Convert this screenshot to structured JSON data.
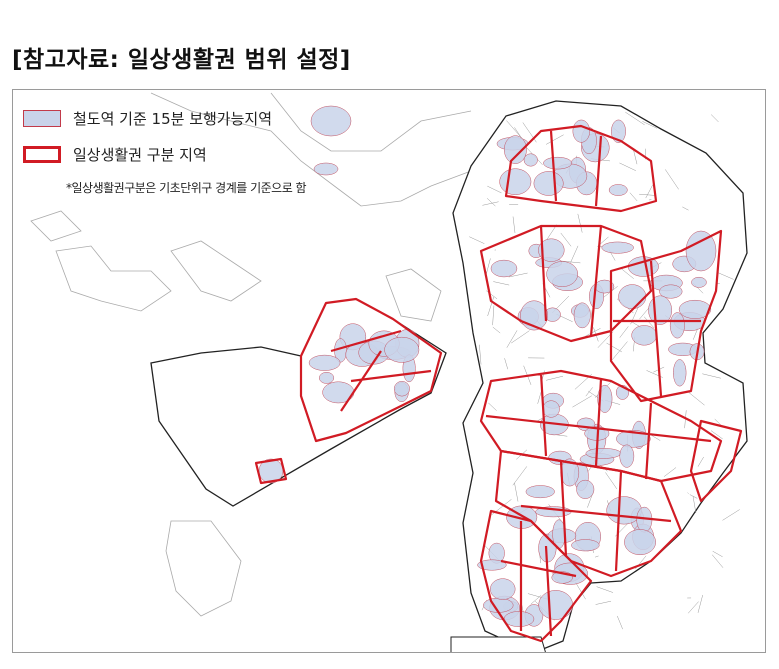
{
  "title": "[참고자료: 일상생활권 범위 설정]",
  "legend": {
    "items": [
      {
        "label": "철도역 기준 15분 보행가능지역",
        "fill": "#c9d3ea",
        "stroke": "#c23a4a"
      },
      {
        "label": "일상생활권 구분 지역",
        "fill": "#ffffff",
        "stroke": "#d11b24"
      }
    ],
    "note": "*일상생활권구분은 기초단위구 경계를 기준으로 함"
  },
  "colors": {
    "walk_area_fill": "#c9d3ea",
    "zone_border": "#d11b24",
    "base_line": "#555555"
  }
}
